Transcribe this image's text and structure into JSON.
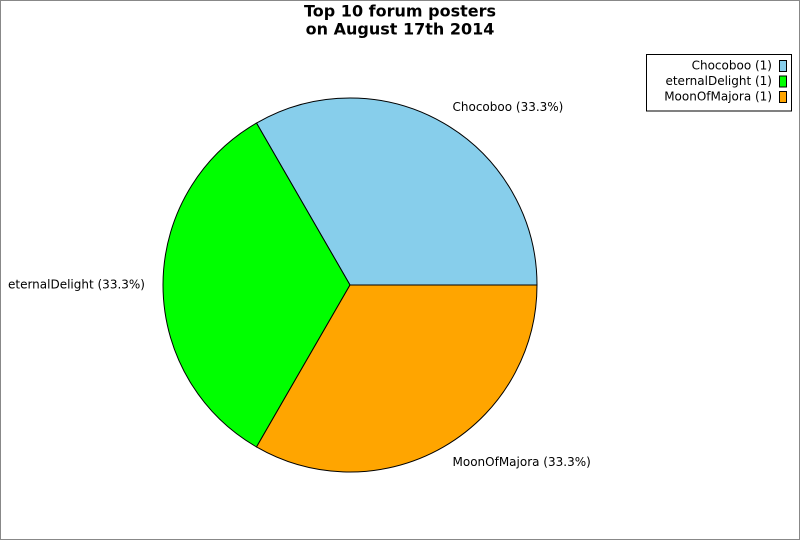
{
  "chart_data": {
    "type": "pie",
    "title": [
      "Top 10 forum posters",
      "on August 17th 2014"
    ],
    "categories": [
      "Chocoboo",
      "eternalDelight",
      "MoonOfMajora"
    ],
    "values": [
      1,
      1,
      1
    ],
    "value_labels": [
      "Chocoboo (33.3%)",
      "eternalDelight (33.3%)",
      "MoonOfMajora (33.3%)"
    ],
    "legend_labels": [
      "Chocoboo (1)",
      "eternalDelight (1)",
      "MoonOfMajora (1)"
    ],
    "colors": [
      "#87ceeb",
      "#00ff00",
      "#ffa500"
    ],
    "legend": "top-right"
  }
}
